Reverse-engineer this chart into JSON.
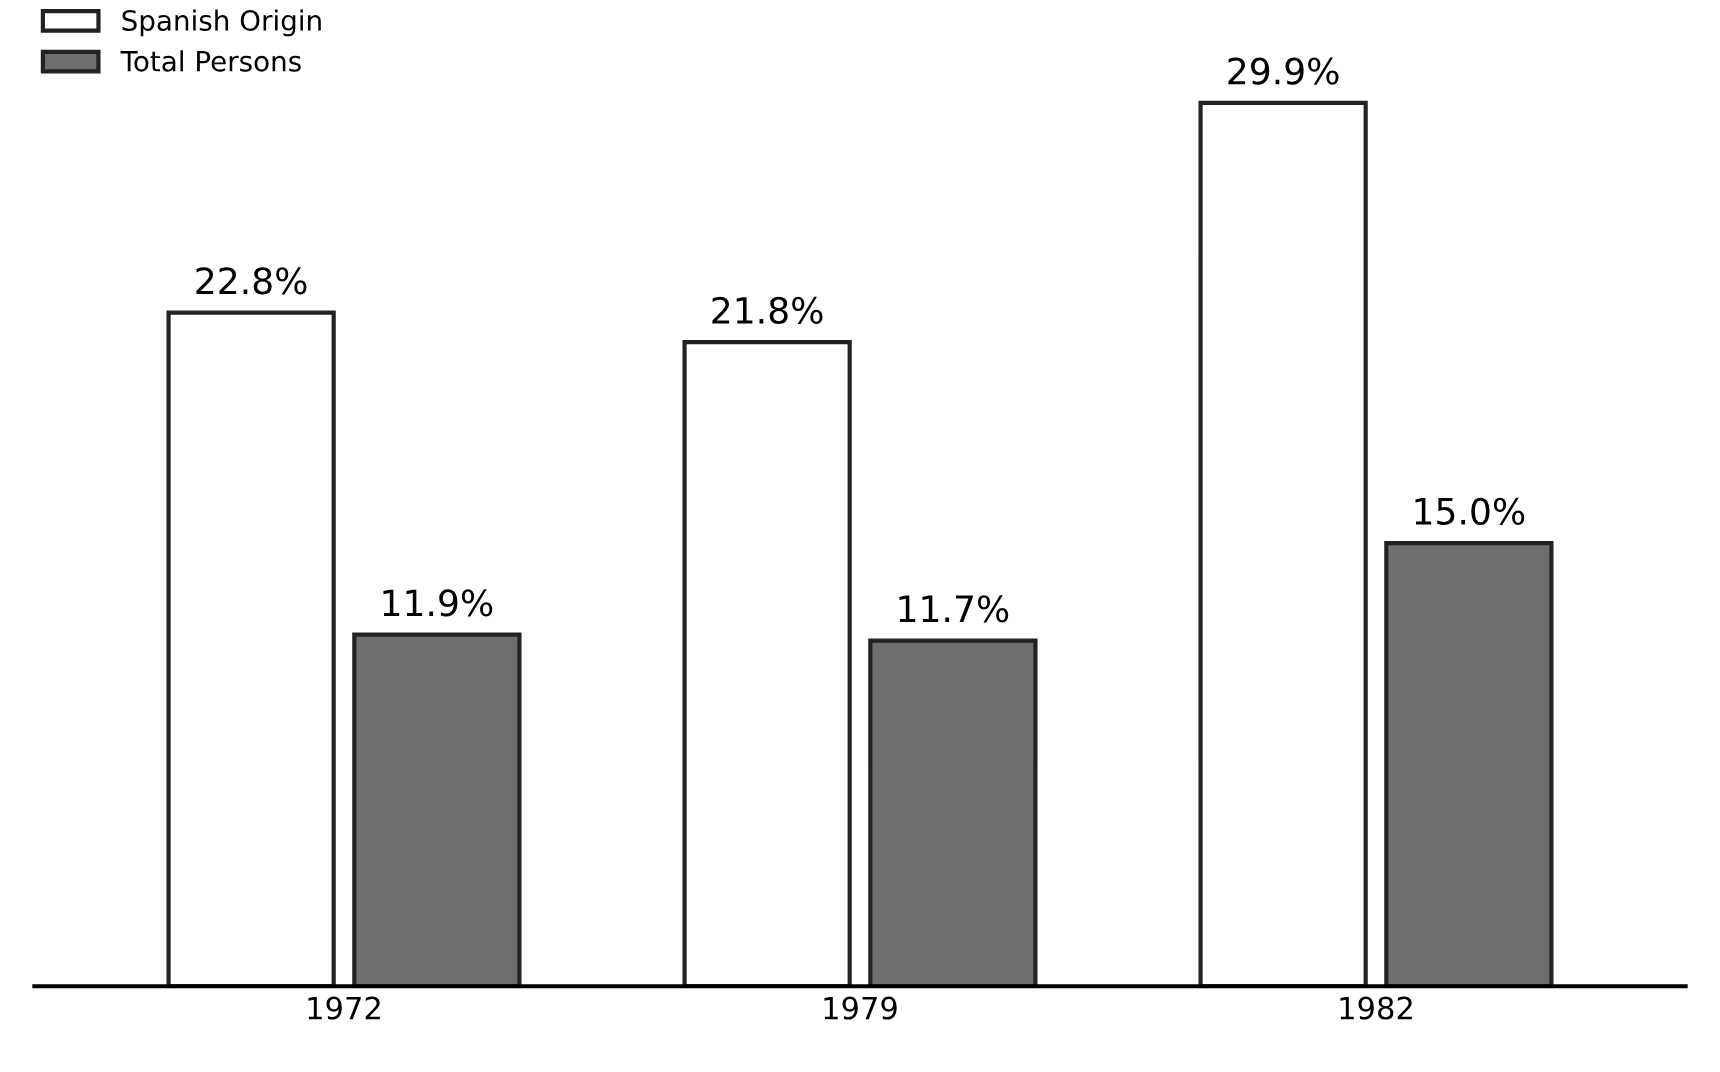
{
  "chart_data": {
    "type": "bar",
    "categories": [
      "1972",
      "1979",
      "1982"
    ],
    "series": [
      {
        "name": "Spanish Origin",
        "color": "#ffffff",
        "values": [
          22.8,
          21.8,
          29.9
        ],
        "value_labels": [
          "22.8%",
          "21.8%",
          "29.9%"
        ]
      },
      {
        "name": "Total Persons",
        "color": "#6e6e6e",
        "values": [
          11.9,
          11.7,
          15.0
        ],
        "value_labels": [
          "11.9%",
          "11.7%",
          "15.0%"
        ]
      }
    ],
    "legend": "top left",
    "grid": false,
    "tick_labels": "x"
  }
}
